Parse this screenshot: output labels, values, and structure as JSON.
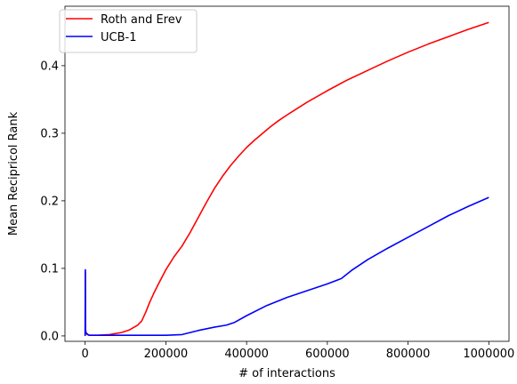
{
  "chart_data": {
    "type": "line",
    "title": "",
    "xlabel": "# of interactions",
    "ylabel": "Mean Recipricol Rank",
    "xlim": [
      -50000,
      1050000
    ],
    "ylim": [
      -0.008,
      0.488
    ],
    "xticks": [
      0,
      200000,
      400000,
      600000,
      800000,
      1000000
    ],
    "yticks": [
      0.0,
      0.1,
      0.2,
      0.3,
      0.4
    ],
    "xtick_labels": [
      "0",
      "200000",
      "400000",
      "600000",
      "800000",
      "1000000"
    ],
    "ytick_labels": [
      "0.0",
      "0.1",
      "0.2",
      "0.3",
      "0.4"
    ],
    "grid": false,
    "legend": "top-left",
    "series": [
      {
        "name": "Roth and Erev",
        "color": "#ff0000",
        "x": [
          0,
          500,
          1000,
          2000,
          5000,
          10000,
          30000,
          60000,
          90000,
          110000,
          130000,
          140000,
          150000,
          160000,
          170000,
          180000,
          200000,
          220000,
          240000,
          260000,
          280000,
          300000,
          320000,
          340000,
          360000,
          380000,
          400000,
          420000,
          440000,
          460000,
          480000,
          500000,
          550000,
          600000,
          650000,
          700000,
          750000,
          800000,
          850000,
          900000,
          950000,
          1000000
        ],
        "y": [
          0.0,
          0.095,
          0.008,
          0.004,
          0.002,
          0.001,
          0.001,
          0.002,
          0.005,
          0.009,
          0.016,
          0.022,
          0.035,
          0.05,
          0.063,
          0.075,
          0.098,
          0.117,
          0.133,
          0.153,
          0.175,
          0.197,
          0.218,
          0.236,
          0.252,
          0.266,
          0.279,
          0.29,
          0.3,
          0.31,
          0.319,
          0.327,
          0.346,
          0.363,
          0.379,
          0.393,
          0.407,
          0.42,
          0.432,
          0.443,
          0.454,
          0.464
        ]
      },
      {
        "name": "UCB-1",
        "color": "#0000ff",
        "x": [
          0,
          500,
          1000,
          2000,
          5000,
          10000,
          50000,
          100000,
          150000,
          200000,
          240000,
          280000,
          320000,
          350000,
          370000,
          400000,
          450000,
          500000,
          550000,
          600000,
          635000,
          660000,
          700000,
          750000,
          800000,
          850000,
          900000,
          950000,
          1000000
        ],
        "y": [
          0.0,
          0.098,
          0.01,
          0.005,
          0.003,
          0.001,
          0.001,
          0.001,
          0.001,
          0.001,
          0.002,
          0.008,
          0.013,
          0.016,
          0.02,
          0.03,
          0.045,
          0.057,
          0.067,
          0.077,
          0.085,
          0.097,
          0.113,
          0.13,
          0.146,
          0.162,
          0.178,
          0.192,
          0.205
        ]
      }
    ]
  }
}
